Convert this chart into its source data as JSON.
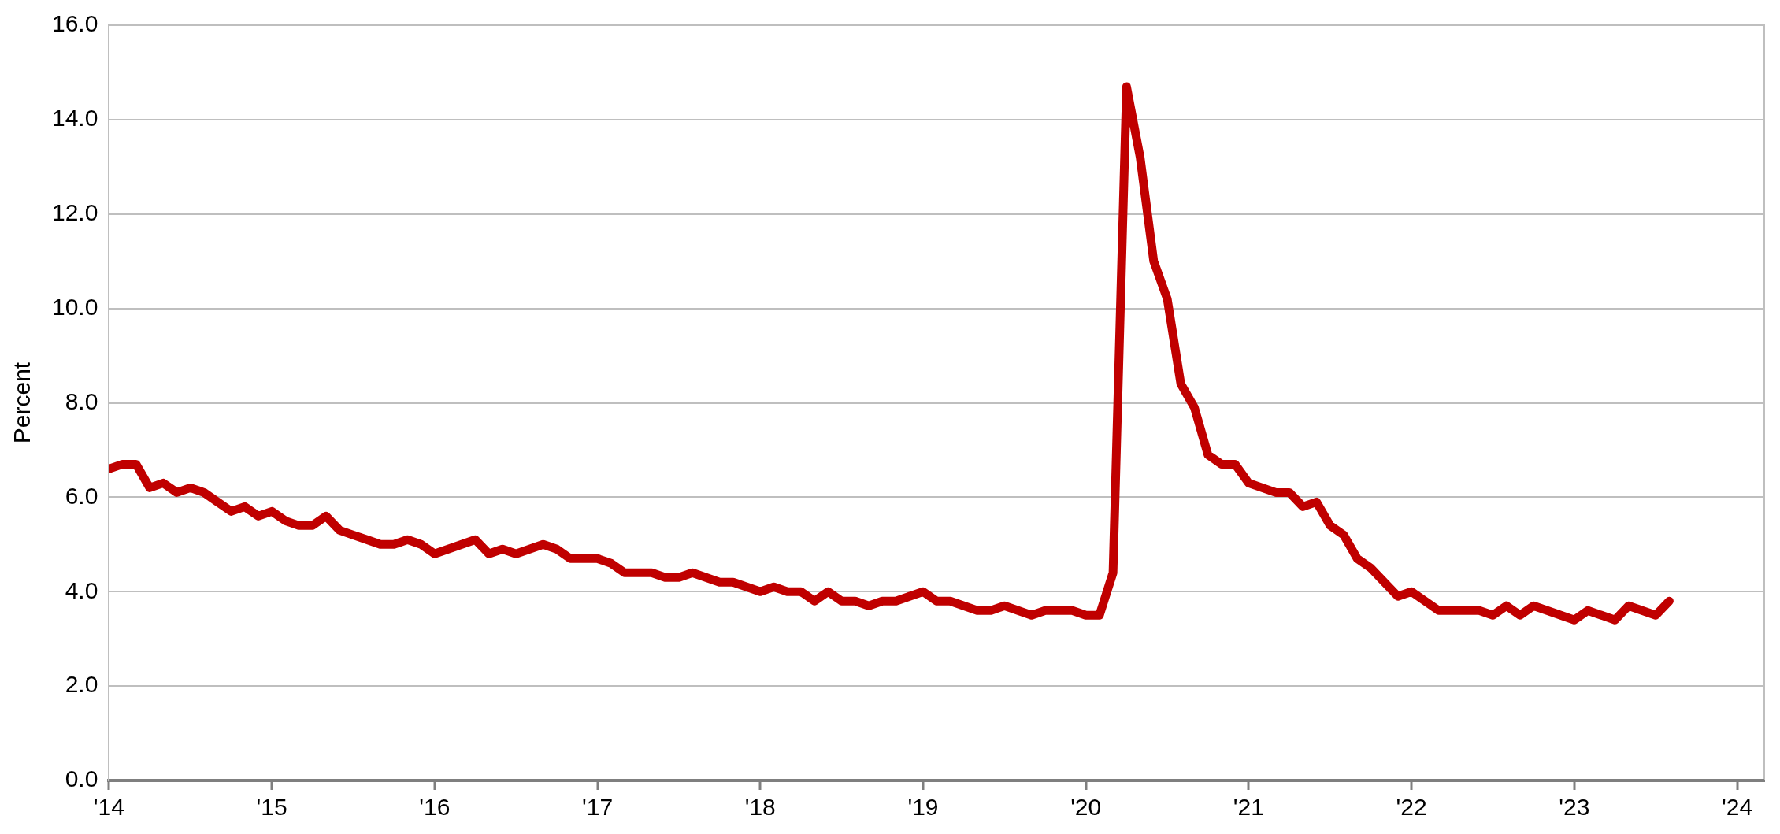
{
  "chart_data": {
    "type": "line",
    "ylabel": "Percent",
    "grid": "y",
    "marker": "none",
    "line_style": "solid",
    "xlim": [
      "2014-01",
      "2024-03"
    ],
    "xticks": [
      {
        "value": "2014",
        "label": "'14"
      },
      {
        "value": "2015",
        "label": "'15"
      },
      {
        "value": "2016",
        "label": "'16"
      },
      {
        "value": "2017",
        "label": "'17"
      },
      {
        "value": "2018",
        "label": "'18"
      },
      {
        "value": "2019",
        "label": "'19"
      },
      {
        "value": "2020",
        "label": "'20"
      },
      {
        "value": "2021",
        "label": "'21"
      },
      {
        "value": "2022",
        "label": "'22"
      },
      {
        "value": "2023",
        "label": "'23"
      },
      {
        "value": "2024",
        "label": "'24"
      }
    ],
    "ylim": [
      0,
      16
    ],
    "yticks": [
      {
        "value": 0,
        "label": "0.0"
      },
      {
        "value": 2,
        "label": "2.0"
      },
      {
        "value": 4,
        "label": "4.0"
      },
      {
        "value": 6,
        "label": "6.0"
      },
      {
        "value": 8,
        "label": "8.0"
      },
      {
        "value": 10,
        "label": "10.0"
      },
      {
        "value": 12,
        "label": "12.0"
      },
      {
        "value": 14,
        "label": "14.0"
      },
      {
        "value": 16,
        "label": "16.0"
      }
    ],
    "x": [
      "2014-01",
      "2014-02",
      "2014-03",
      "2014-04",
      "2014-05",
      "2014-06",
      "2014-07",
      "2014-08",
      "2014-09",
      "2014-10",
      "2014-11",
      "2014-12",
      "2015-01",
      "2015-02",
      "2015-03",
      "2015-04",
      "2015-05",
      "2015-06",
      "2015-07",
      "2015-08",
      "2015-09",
      "2015-10",
      "2015-11",
      "2015-12",
      "2016-01",
      "2016-02",
      "2016-03",
      "2016-04",
      "2016-05",
      "2016-06",
      "2016-07",
      "2016-08",
      "2016-09",
      "2016-10",
      "2016-11",
      "2016-12",
      "2017-01",
      "2017-02",
      "2017-03",
      "2017-04",
      "2017-05",
      "2017-06",
      "2017-07",
      "2017-08",
      "2017-09",
      "2017-10",
      "2017-11",
      "2017-12",
      "2018-01",
      "2018-02",
      "2018-03",
      "2018-04",
      "2018-05",
      "2018-06",
      "2018-07",
      "2018-08",
      "2018-09",
      "2018-10",
      "2018-11",
      "2018-12",
      "2019-01",
      "2019-02",
      "2019-03",
      "2019-04",
      "2019-05",
      "2019-06",
      "2019-07",
      "2019-08",
      "2019-09",
      "2019-10",
      "2019-11",
      "2019-12",
      "2020-01",
      "2020-02",
      "2020-03",
      "2020-04",
      "2020-05",
      "2020-06",
      "2020-07",
      "2020-08",
      "2020-09",
      "2020-10",
      "2020-11",
      "2020-12",
      "2021-01",
      "2021-02",
      "2021-03",
      "2021-04",
      "2021-05",
      "2021-06",
      "2021-07",
      "2021-08",
      "2021-09",
      "2021-10",
      "2021-11",
      "2021-12",
      "2022-01",
      "2022-02",
      "2022-03",
      "2022-04",
      "2022-05",
      "2022-06",
      "2022-07",
      "2022-08",
      "2022-09",
      "2022-10",
      "2022-11",
      "2022-12",
      "2023-01",
      "2023-02",
      "2023-03",
      "2023-04",
      "2023-05",
      "2023-06",
      "2023-07",
      "2023-08"
    ],
    "series": [
      {
        "color": "#c00000",
        "values": [
          6.6,
          6.7,
          6.7,
          6.2,
          6.3,
          6.1,
          6.2,
          6.1,
          5.9,
          5.7,
          5.8,
          5.6,
          5.7,
          5.5,
          5.4,
          5.4,
          5.6,
          5.3,
          5.2,
          5.1,
          5.0,
          5.0,
          5.1,
          5.0,
          4.8,
          4.9,
          5.0,
          5.1,
          4.8,
          4.9,
          4.8,
          4.9,
          5.0,
          4.9,
          4.7,
          4.7,
          4.7,
          4.6,
          4.4,
          4.4,
          4.4,
          4.3,
          4.3,
          4.4,
          4.3,
          4.2,
          4.2,
          4.1,
          4.0,
          4.1,
          4.0,
          4.0,
          3.8,
          4.0,
          3.8,
          3.8,
          3.7,
          3.8,
          3.8,
          3.9,
          4.0,
          3.8,
          3.8,
          3.7,
          3.6,
          3.6,
          3.7,
          3.6,
          3.5,
          3.6,
          3.6,
          3.6,
          3.5,
          3.5,
          4.4,
          14.7,
          13.2,
          11.0,
          10.2,
          8.4,
          7.9,
          6.9,
          6.7,
          6.7,
          6.3,
          6.2,
          6.1,
          6.1,
          5.8,
          5.9,
          5.4,
          5.2,
          4.7,
          4.5,
          4.2,
          3.9,
          4.0,
          3.8,
          3.6,
          3.6,
          3.6,
          3.6,
          3.5,
          3.7,
          3.5,
          3.7,
          3.6,
          3.5,
          3.4,
          3.6,
          3.5,
          3.4,
          3.7,
          3.6,
          3.5,
          3.8
        ]
      }
    ]
  }
}
